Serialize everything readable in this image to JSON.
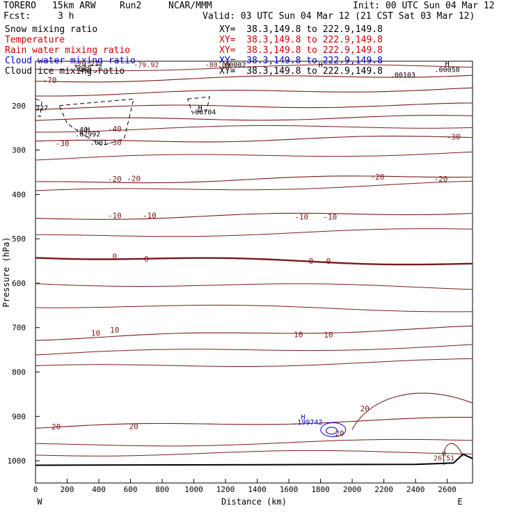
{
  "header": {
    "model": "TORERO",
    "grid": "15km ARW",
    "run": "Run2",
    "org": "NCAR/MMM",
    "init": "Init: 00 UTC Sun 04 Mar 12",
    "fcst_label": "Fcst:",
    "fcst_value": "3 h",
    "valid": "Valid: 03 UTC Sun 04 Mar 12 (21 CST Sat 03 Mar 12)"
  },
  "fields": [
    {
      "label": "Snow mixing ratio",
      "xy": "XY=  38.3,149.8 to 222.9,149.8",
      "color": "#000000"
    },
    {
      "label": "Temperature",
      "xy": "XY=  38.3,149.8 to 222.9,149.8",
      "color": "#cc0000"
    },
    {
      "label": "Rain water mixing ratio",
      "xy": "XY=  38.3,149.8 to 222.9,149.8",
      "color": "#cc0000"
    },
    {
      "label": "Cloud water mixing ratio",
      "xy": "XY=  38.3,149.8 to 222.9,149.8",
      "color": "#0000cc"
    },
    {
      "label": "Cloud ice mixing ratio",
      "xy": "XY=  38.3,149.8 to 222.9,149.8",
      "color": "#000000"
    }
  ],
  "chart_data": {
    "type": "contour-cross-section",
    "xlabel": "Distance (km)",
    "ylabel": "Pressure (hPa)",
    "xlim": [
      0,
      2760
    ],
    "ylim": [
      1050,
      100
    ],
    "x_ticks": [
      0,
      200,
      400,
      600,
      800,
      1000,
      1200,
      1400,
      1600,
      1800,
      2000,
      2200,
      2400,
      2600
    ],
    "y_ticks": [
      200,
      300,
      400,
      500,
      600,
      700,
      800,
      900,
      1000
    ],
    "west_label": "W",
    "east_label": "E",
    "temperature_contours": [
      {
        "level": -70,
        "p_start": 145,
        "p_end": 130,
        "bold": false
      },
      {
        "level": -60,
        "p_start": 175,
        "p_end": 162,
        "bold": false
      },
      {
        "level": -50,
        "p_start": 205,
        "p_end": 198,
        "bold": false
      },
      {
        "level": -40,
        "p_start": 233,
        "p_end": 225,
        "bold": false
      },
      {
        "level": -30,
        "p_start": 283,
        "p_end": 270,
        "bold": false
      },
      {
        "level": -20,
        "p_start": 375,
        "p_end": 357,
        "bold": false
      },
      {
        "level": -10,
        "p_start": 455,
        "p_end": 440,
        "bold": false
      },
      {
        "level": 0,
        "p_start": 540,
        "p_end": 557,
        "bold": true
      },
      {
        "level": 10,
        "p_start": 725,
        "p_end": 700,
        "bold": false
      },
      {
        "level": 20,
        "p_start": 925,
        "p_end": 905,
        "bold": false
      }
    ],
    "temperature_labels": [
      {
        "text": "-70",
        "x": 90,
        "p": 142
      },
      {
        "text": "-40",
        "x": 500,
        "p": 252
      },
      {
        "text": "-30",
        "x": 170,
        "p": 285
      },
      {
        "text": "-30",
        "x": 500,
        "p": 283
      },
      {
        "text": "-30",
        "x": 2640,
        "p": 270
      },
      {
        "text": "-20",
        "x": 500,
        "p": 365
      },
      {
        "text": "-20",
        "x": 620,
        "p": 364
      },
      {
        "text": "-20",
        "x": 2160,
        "p": 360
      },
      {
        "text": "-20",
        "x": 2560,
        "p": 365
      },
      {
        "text": "-10",
        "x": 500,
        "p": 447
      },
      {
        "text": "-10",
        "x": 720,
        "p": 447
      },
      {
        "text": "-10",
        "x": 1680,
        "p": 450
      },
      {
        "text": "-10",
        "x": 1860,
        "p": 450
      },
      {
        "text": "0",
        "x": 500,
        "p": 540
      },
      {
        "text": "0",
        "x": 700,
        "p": 545
      },
      {
        "text": "0",
        "x": 1740,
        "p": 550
      },
      {
        "text": "0",
        "x": 1850,
        "p": 550
      },
      {
        "text": "10",
        "x": 380,
        "p": 712
      },
      {
        "text": "10",
        "x": 500,
        "p": 705
      },
      {
        "text": "10",
        "x": 1660,
        "p": 715
      },
      {
        "text": "10",
        "x": 1850,
        "p": 716
      },
      {
        "text": "20",
        "x": 130,
        "p": 923
      },
      {
        "text": "20",
        "x": 620,
        "p": 922
      },
      {
        "text": "20",
        "x": 1920,
        "p": 938
      },
      {
        "text": "20",
        "x": 2080,
        "p": 882
      }
    ],
    "annotations": [
      {
        "text": "-79.22",
        "x": 320,
        "p": 105
      },
      {
        "text": "-79.92",
        "x": 700,
        "p": 107
      },
      {
        "text": "-80.09",
        "x": 1150,
        "p": 107
      },
      {
        "text": ".00002",
        "x": 1250,
        "p": 107
      },
      {
        "text": ".009",
        "x": 300,
        "p": 116
      },
      {
        "text": "227",
        "x": 40,
        "p": 204
      },
      {
        "text": "H",
        "x": 1040,
        "p": 204
      },
      {
        "text": ".00704",
        "x": 1060,
        "p": 214
      },
      {
        "text": "-40",
        "x": 290,
        "p": 253
      },
      {
        "text": "H",
        "x": 330,
        "p": 253
      },
      {
        "text": ".02992",
        "x": 330,
        "p": 263
      },
      {
        "text": ".001",
        "x": 400,
        "p": 282
      },
      {
        "text": "H",
        "x": 2600,
        "p": 105
      },
      {
        "text": ".00058",
        "x": 2600,
        "p": 118
      },
      {
        "text": ".00103",
        "x": 2320,
        "p": 130
      },
      {
        "text": "H",
        "x": 1800,
        "p": 107
      },
      {
        "text": "H",
        "x": 1690,
        "p": 900
      },
      {
        "text": ".199742",
        "x": 1720,
        "p": 912
      },
      {
        "text": "H",
        "x": 2580,
        "p": 983
      },
      {
        "text": "26.51",
        "x": 2580,
        "p": 993
      }
    ]
  }
}
